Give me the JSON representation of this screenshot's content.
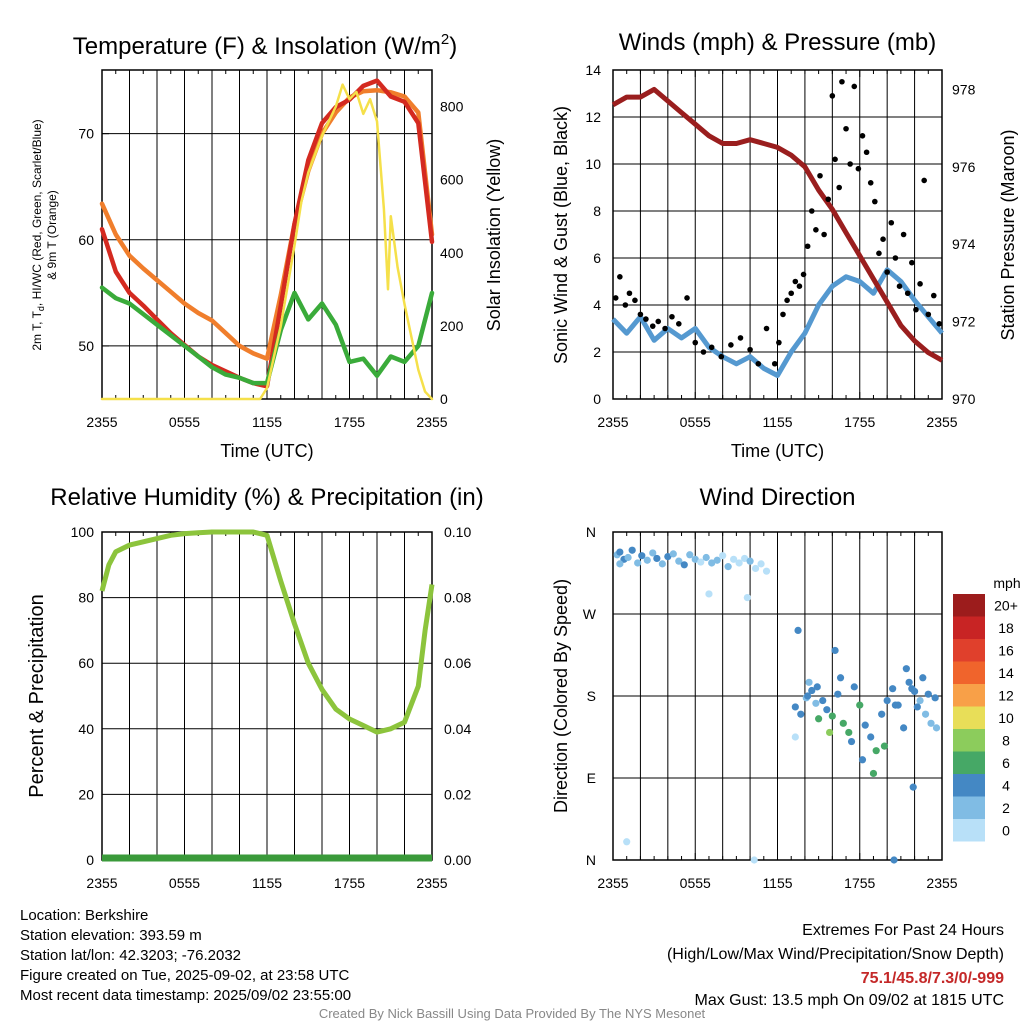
{
  "chart_data": [
    {
      "type": "line",
      "title_main": "Temperature (F) & Insolation (W/m",
      "title_sup": "2",
      "title_end": ")",
      "xlabel": "Time (UTC)",
      "ylabel_lines": [
        "2m T, T",
        "d",
        ", HI/WC (Red, Green, Scarlet/Blue)",
        "& 9m T (Orange)"
      ],
      "ylabel_right": "Solar Insolation (Yellow)",
      "xticks": [
        "2355",
        "0555",
        "1155",
        "1755",
        "2355"
      ],
      "ylim": [
        45,
        76
      ],
      "yticks": [
        50,
        60,
        70
      ],
      "y2lim": [
        0,
        900
      ],
      "y2ticks": [
        0,
        200,
        400,
        600,
        800
      ],
      "colors": {
        "temp": "#d42a20",
        "heat_index": "#c81818",
        "temp9m": "#f07e2c",
        "dewpoint": "#3aab3a",
        "solar": "#f5e04a"
      },
      "series": [
        {
          "key": "temp9m",
          "x": [
            0,
            1,
            2,
            3,
            4,
            5,
            6,
            7,
            8,
            9,
            10,
            11,
            12,
            13,
            14,
            15,
            16,
            17,
            18,
            19,
            20,
            21,
            22,
            23,
            24
          ],
          "values": [
            63.4,
            60.5,
            58.5,
            57.3,
            56.2,
            55.1,
            54.0,
            53.1,
            52.4,
            51.2,
            50.0,
            49.3,
            48.8,
            54.8,
            61.5,
            66.5,
            70.0,
            72.0,
            73.4,
            74.0,
            74.1,
            73.9,
            73.5,
            72.0,
            60.5
          ]
        },
        {
          "key": "temp",
          "x": [
            0,
            1,
            2,
            3,
            4,
            5,
            6,
            7,
            8,
            9,
            10,
            11,
            12,
            13,
            14,
            15,
            16,
            17,
            18,
            19,
            20,
            21,
            22,
            23,
            24
          ],
          "values": [
            61.0,
            57.0,
            55.0,
            53.8,
            52.5,
            51.2,
            50.1,
            49.0,
            48.2,
            47.6,
            47.0,
            46.5,
            46.2,
            53.8,
            61.5,
            67.5,
            71.0,
            72.5,
            73.2,
            74.5,
            75.0,
            73.5,
            73.0,
            71.0,
            59.8
          ]
        },
        {
          "key": "dewpoint",
          "x": [
            0,
            1,
            2,
            3,
            4,
            5,
            6,
            7,
            8,
            9,
            10,
            11,
            12,
            13,
            14,
            15,
            16,
            17,
            18,
            19,
            20,
            21,
            22,
            23,
            24
          ],
          "values": [
            55.5,
            54.5,
            54.0,
            53.0,
            52.0,
            51.0,
            50.0,
            49.0,
            48.0,
            47.3,
            47.0,
            46.5,
            46.5,
            51.5,
            55.0,
            52.5,
            54.0,
            52.0,
            48.5,
            48.8,
            47.2,
            49.0,
            48.5,
            50.0,
            55.0
          ]
        },
        {
          "key": "solar",
          "x": [
            0,
            1,
            2,
            3,
            4,
            5,
            6,
            7,
            8,
            9,
            10,
            11,
            11.5,
            12,
            13,
            14,
            14.5,
            15,
            16,
            17,
            17.5,
            18,
            18.5,
            19,
            19.5,
            20,
            20.5,
            20.8,
            21,
            21.5,
            22,
            22.5,
            23,
            23.5,
            24
          ],
          "values": [
            0,
            0,
            0,
            0,
            0,
            0,
            0,
            0,
            0,
            0,
            0,
            0,
            0,
            30,
            200,
            420,
            540,
            620,
            720,
            800,
            860,
            820,
            840,
            780,
            820,
            760,
            520,
            300,
            500,
            360,
            260,
            170,
            80,
            20,
            0
          ]
        }
      ]
    },
    {
      "type": "scatter",
      "title": "Winds (mph) & Pressure (mb)",
      "xlabel": "Time (UTC)",
      "ylabel": "Sonic Wind & Gust (Blue, Black)",
      "ylabel_right": "Station Pressure (Maroon)",
      "xticks": [
        "2355",
        "0555",
        "1155",
        "1755",
        "2355"
      ],
      "ylim": [
        0,
        14
      ],
      "yticks": [
        0,
        2,
        4,
        6,
        8,
        10,
        12,
        14
      ],
      "y2lim": [
        970,
        978.5
      ],
      "y2ticks": [
        970,
        972,
        974,
        976,
        978
      ],
      "colors": {
        "wind": "#5599d0",
        "gust": "#000000",
        "pressure": "#9a1e1e"
      },
      "pressure": {
        "x": [
          0,
          1,
          2,
          3,
          4,
          5,
          6,
          7,
          8,
          9,
          10,
          11,
          12,
          13,
          14,
          15,
          16,
          17,
          18,
          19,
          20,
          21,
          22,
          23,
          24
        ],
        "values": [
          977.6,
          977.8,
          977.8,
          978.0,
          977.7,
          977.4,
          977.1,
          976.8,
          976.6,
          976.6,
          976.7,
          976.6,
          976.5,
          976.3,
          976.0,
          975.4,
          974.9,
          974.3,
          973.7,
          973.1,
          972.5,
          971.9,
          971.5,
          971.2,
          971.0
        ]
      },
      "wind": {
        "x": [
          0,
          1,
          2,
          3,
          4,
          5,
          6,
          7,
          8,
          9,
          10,
          11,
          12,
          13,
          14,
          15,
          16,
          17,
          18,
          19,
          20,
          21,
          22,
          23,
          24
        ],
        "values": [
          3.4,
          2.8,
          3.5,
          2.5,
          3.0,
          2.6,
          3.0,
          2.2,
          1.8,
          1.5,
          1.8,
          1.3,
          1.0,
          2.0,
          2.8,
          4.0,
          4.8,
          5.2,
          5.0,
          4.5,
          5.5,
          5.0,
          4.2,
          3.5,
          2.8
        ]
      },
      "gust_x": [
        0.2,
        0.5,
        0.9,
        1.2,
        1.6,
        2.0,
        2.4,
        2.9,
        3.3,
        3.8,
        4.3,
        4.8,
        5.4,
        6.0,
        6.6,
        7.2,
        7.9,
        8.6,
        9.3,
        10.0,
        10.6,
        11.2,
        11.8,
        12.1,
        12.4,
        12.7,
        13.0,
        13.3,
        13.6,
        13.9,
        14.2,
        14.5,
        14.8,
        15.1,
        15.4,
        15.7,
        16.0,
        16.2,
        16.5,
        16.7,
        17.0,
        17.3,
        17.6,
        17.9,
        18.2,
        18.5,
        18.8,
        19.1,
        19.4,
        19.7,
        20.0,
        20.3,
        20.6,
        20.9,
        21.2,
        21.5,
        21.8,
        22.1,
        22.4,
        22.7,
        23.0,
        23.4,
        23.8
      ],
      "gust_values": [
        4.3,
        5.2,
        4.0,
        4.5,
        4.2,
        3.6,
        3.4,
        3.1,
        3.3,
        3.0,
        3.5,
        3.2,
        4.3,
        2.4,
        2.0,
        2.2,
        1.8,
        2.3,
        2.6,
        2.1,
        1.5,
        3.0,
        1.5,
        2.4,
        3.6,
        4.2,
        4.5,
        5.0,
        4.8,
        5.3,
        6.5,
        8.0,
        7.2,
        9.5,
        7.0,
        8.5,
        12.9,
        10.2,
        9.0,
        13.5,
        11.5,
        10.0,
        13.3,
        9.8,
        11.2,
        10.5,
        9.2,
        8.4,
        6.2,
        6.8,
        5.4,
        7.5,
        6.0,
        4.8,
        7.0,
        4.5,
        5.8,
        3.8,
        4.9,
        9.3,
        3.6,
        4.4,
        3.2
      ]
    },
    {
      "type": "line",
      "title": "Relative Humidity (%) & Precipitation (in)",
      "ylabel": "Percent & Precipitation",
      "xticks": [
        "2355",
        "0555",
        "1155",
        "1755",
        "2355"
      ],
      "ylim": [
        0,
        100
      ],
      "yticks": [
        0,
        20,
        40,
        60,
        80,
        100
      ],
      "y2lim": [
        0,
        0.1
      ],
      "y2ticks": [
        "0.00",
        "0.02",
        "0.04",
        "0.06",
        "0.08",
        "0.10"
      ],
      "colors": {
        "rh": "#8cc43c",
        "precip": "#3a9a3a"
      },
      "rh": {
        "x": [
          0,
          0.5,
          1,
          2,
          3,
          4,
          5,
          6,
          7,
          8,
          9,
          10,
          11,
          12,
          13,
          14,
          15,
          16,
          17,
          18,
          19,
          20,
          21,
          22,
          23,
          23.5,
          24
        ],
        "values": [
          82,
          90,
          94,
          96,
          97,
          98,
          99,
          99.5,
          99.8,
          100,
          100,
          100,
          100,
          99,
          85,
          72,
          60,
          52,
          46,
          43,
          41,
          39,
          40,
          42,
          53,
          70,
          84
        ]
      },
      "precip_values": [
        0,
        0
      ]
    },
    {
      "type": "scatter",
      "title": "Wind Direction",
      "ylabel": "Direction (Colored By Speed)",
      "xticks": [
        "2355",
        "0555",
        "1155",
        "1755",
        "2355"
      ],
      "ytick_labels": [
        "N",
        "E",
        "S",
        "W",
        "N"
      ],
      "ylim": [
        0,
        360
      ],
      "legend_title": "mph",
      "legend_labels": [
        "20+",
        "18",
        "16",
        "14",
        "12",
        "10",
        "8",
        "6",
        "4",
        "2",
        "0"
      ],
      "legend_colors": [
        "#9c1c1c",
        "#c82424",
        "#e0402c",
        "#f0642c",
        "#f8a048",
        "#e8de58",
        "#8ccc5c",
        "#46a866",
        "#4488c4",
        "#80bce4",
        "#b8e0f8"
      ],
      "x": [
        0.3,
        0.5,
        0.8,
        1.1,
        1.4,
        1.8,
        2.1,
        2.5,
        2.9,
        3.2,
        3.6,
        4.0,
        4.4,
        4.8,
        5.2,
        5.6,
        6.0,
        6.4,
        6.8,
        7.2,
        7.6,
        8.0,
        8.4,
        8.8,
        9.2,
        9.6,
        10.0,
        10.4,
        10.8,
        11.2,
        1.0,
        7.0,
        9.8,
        13.5,
        14.3,
        14.8,
        13.3,
        13.7,
        14.1,
        14.5,
        14.9,
        15.3,
        15.6,
        16.0,
        16.4,
        16.8,
        17.2,
        17.6,
        18.0,
        18.4,
        18.8,
        19.2,
        19.6,
        20.0,
        20.4,
        20.8,
        21.2,
        21.6,
        22.0,
        22.4,
        22.8,
        23.2,
        23.6,
        14.2,
        15.0,
        15.8,
        16.6,
        17.4,
        18.2,
        19.0,
        19.8,
        20.6,
        21.4,
        22.2,
        23.0,
        23.5,
        0.5,
        10.3,
        13.3,
        16.2,
        21.8,
        21.9,
        22.6,
        20.5
      ],
      "y": [
        335,
        338,
        330,
        332,
        340,
        326,
        334,
        329,
        337,
        331,
        325,
        333,
        336,
        328,
        324,
        335,
        330,
        327,
        332,
        326,
        329,
        334,
        322,
        330,
        326,
        331,
        328,
        320,
        325,
        317,
        20,
        292,
        288,
        252,
        195,
        172,
        168,
        160,
        178,
        186,
        190,
        175,
        165,
        158,
        182,
        150,
        140,
        190,
        170,
        148,
        135,
        120,
        160,
        175,
        188,
        170,
        145,
        195,
        185,
        175,
        160,
        150,
        145,
        180,
        155,
        140,
        200,
        130,
        110,
        95,
        125,
        170,
        210,
        168,
        182,
        178,
        325,
        0,
        135,
        230,
        188,
        80,
        200,
        0
      ],
      "speed_bin": [
        9,
        8,
        8,
        9,
        8,
        9,
        8,
        9,
        9,
        8,
        9,
        8,
        9,
        9,
        8,
        9,
        9,
        10,
        9,
        9,
        9,
        10,
        9,
        10,
        10,
        10,
        9,
        10,
        10,
        10,
        10,
        10,
        10,
        8,
        9,
        9,
        8,
        8,
        9,
        8,
        8,
        8,
        8,
        7,
        8,
        7,
        7,
        8,
        7,
        8,
        8,
        7,
        8,
        8,
        8,
        8,
        8,
        8,
        8,
        9,
        9,
        9,
        9,
        8,
        7,
        6,
        8,
        8,
        8,
        7,
        7,
        8,
        8,
        8,
        8,
        8,
        9,
        10,
        10,
        8,
        8,
        8,
        8,
        8
      ]
    }
  ],
  "info": {
    "location": "Location: Berkshire",
    "elevation": "Station elevation: 393.59 m",
    "latlon": "Station lat/lon: 42.3203; -76.2032",
    "created": "Figure created on Tue, 2025-09-02, at 23:58 UTC",
    "recent": "Most recent data timestamp: 2025/09/02 23:55:00"
  },
  "extremes": {
    "title": "Extremes For Past 24 Hours",
    "subtitle": "(High/Low/Max Wind/Precipitation/Snow Depth)",
    "values": "75.1/45.8/7.3/0/-999",
    "values_color": "#c42828",
    "gust": "Max Gust: 13.5 mph On 09/02 at 1815 UTC"
  },
  "footer": "Created By Nick Bassill Using Data Provided By The NYS Mesonet"
}
